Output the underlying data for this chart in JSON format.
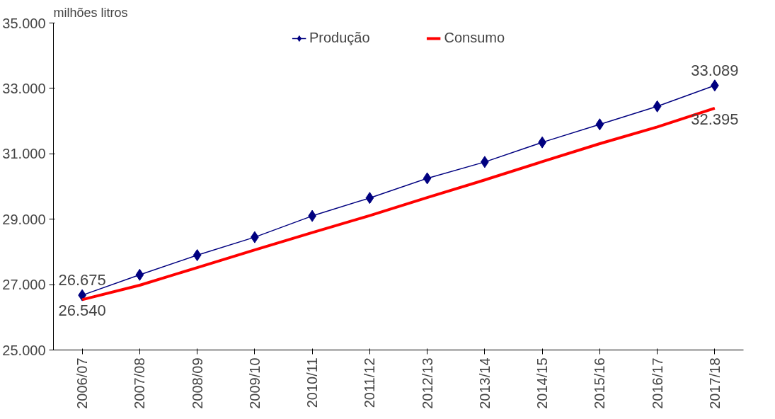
{
  "chart_data": {
    "type": "line",
    "ylabel": "milhões litros",
    "categories": [
      "2006/07",
      "2007/08",
      "2008/09",
      "2009/10",
      "2010/11",
      "2011/12",
      "2012/13",
      "2013/14",
      "2014/15",
      "2015/16",
      "2016/17",
      "2017/18"
    ],
    "series": [
      {
        "name": "Produção",
        "color": "#000080",
        "marker": "diamond",
        "values": [
          26675,
          27300,
          27900,
          28450,
          29100,
          29650,
          30250,
          30750,
          31350,
          31900,
          32450,
          33089
        ],
        "value_labels": [
          "26.675",
          null,
          null,
          null,
          null,
          null,
          null,
          null,
          null,
          null,
          null,
          "33.089"
        ]
      },
      {
        "name": "Consumo",
        "color": "#ff0000",
        "marker": "none",
        "values": [
          26540,
          26980,
          27520,
          28060,
          28590,
          29110,
          29660,
          30200,
          30760,
          31310,
          31820,
          32395
        ],
        "value_labels": [
          "26.540",
          null,
          null,
          null,
          null,
          null,
          null,
          null,
          null,
          null,
          null,
          "32.395"
        ]
      }
    ],
    "ylim": [
      25000,
      35000
    ],
    "yticks": [
      {
        "value": 25000,
        "label": "25.000"
      },
      {
        "value": 27000,
        "label": "27.000"
      },
      {
        "value": 29000,
        "label": "29.000"
      },
      {
        "value": 31000,
        "label": "31.000"
      },
      {
        "value": 33000,
        "label": "33.000"
      },
      {
        "value": 35000,
        "label": "35.000"
      }
    ],
    "grid": false,
    "legend": "top",
    "line_style": "solid"
  }
}
